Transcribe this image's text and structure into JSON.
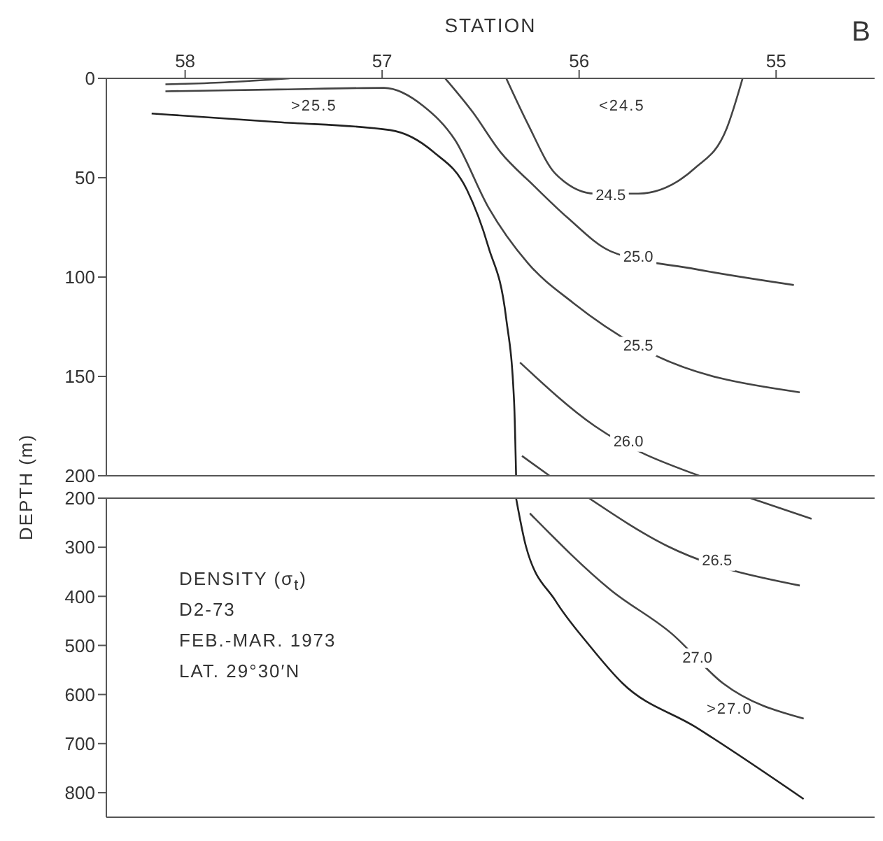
{
  "chart_data": [
    {
      "type": "line",
      "xlabel": "STATION",
      "ylabel": "DEPTH (m)",
      "xlim": [
        58.4,
        54.5
      ],
      "xticks": [
        58,
        57,
        56,
        55
      ],
      "ylim": [
        200,
        0
      ],
      "yticks": [
        0,
        50,
        100,
        150,
        200
      ],
      "grid": false,
      "legend": false,
      "marker": "none",
      "line_style": "solid",
      "annotations": [
        "B",
        ">25.5",
        "<24.5",
        {
          "text": "24.5",
          "x": 55.84,
          "y": 59
        },
        {
          "text": "25.0",
          "x": 55.7,
          "y": 90
        },
        {
          "text": "25.5",
          "x": 55.7,
          "y": 135
        },
        {
          "text": "26.0",
          "x": 55.75,
          "y": 183
        }
      ],
      "series": [
        {
          "color": "#444444",
          "x": [
            58.1,
            57.8,
            57.47
          ],
          "values": [
            3,
            2,
            0
          ]
        },
        {
          "color": "#444444",
          "x": [
            56.37,
            56.26,
            56.12,
            55.92,
            55.7,
            55.41,
            55.25,
            55.17
          ],
          "values": [
            0,
            23,
            48,
            58,
            58,
            45,
            25,
            0
          ]
        },
        {
          "color": "#444444",
          "x": [
            56.68,
            56.54,
            56.4,
            56.23,
            56.06,
            55.84,
            55.41,
            54.91
          ],
          "values": [
            0,
            17,
            37,
            54,
            70,
            87,
            96,
            104
          ]
        },
        {
          "color": "#444444",
          "x": [
            58.1,
            57.53,
            56.99,
            56.79,
            56.63,
            56.46,
            56.26,
            56.03,
            55.7,
            54.88
          ],
          "values": [
            6.5,
            5.6,
            4.8,
            14,
            31,
            65,
            93,
            113,
            135,
            158
          ]
        },
        {
          "color": "#222222",
          "x": [
            58.17,
            57.53,
            56.96,
            56.74,
            56.57,
            56.46,
            56.37,
            56.33,
            56.32
          ],
          "values": [
            17.7,
            22,
            26,
            37,
            56,
            85,
            121,
            163,
            200
          ]
        },
        {
          "color": "#444444",
          "x": [
            56.3,
            55.92,
            55.39
          ],
          "values": [
            143,
            175,
            200
          ]
        },
        {
          "color": "#444444",
          "x": [
            56.29,
            56.15
          ],
          "values": [
            190,
            200
          ]
        }
      ]
    },
    {
      "type": "line",
      "xlim": [
        58.4,
        54.5
      ],
      "ylim": [
        850,
        200
      ],
      "yticks": [
        200,
        300,
        400,
        500,
        600,
        700,
        800
      ],
      "tick_labels": "y",
      "grid": false,
      "legend": false,
      "marker": "none",
      "line_style": "solid",
      "annotations": [
        "DENSITY (σ$_{t}$)",
        "D2-73",
        "FEB.-MAR. 1973",
        "LAT. 29°30′N",
        ">27.0",
        {
          "text": "26.5",
          "x": 55.3,
          "y": 328
        },
        {
          "text": "27.0",
          "x": 55.4,
          "y": 526
        }
      ],
      "series": [
        {
          "color": "#222222",
          "x": [
            56.32,
            56.27,
            56.12,
            55.95,
            55.78,
            55.41,
            54.86
          ],
          "values": [
            200,
            298,
            409,
            499,
            577,
            666,
            813
          ]
        },
        {
          "color": "#444444",
          "x": [
            55.13,
            54.82
          ],
          "values": [
            200,
            242
          ]
        },
        {
          "color": "#444444",
          "x": [
            55.95,
            55.55,
            54.88
          ],
          "values": [
            200,
            298,
            378
          ]
        },
        {
          "color": "#444444",
          "x": [
            56.25,
            55.84,
            55.53,
            55.27,
            54.86
          ],
          "values": [
            231,
            387,
            476,
            577,
            649
          ]
        }
      ]
    }
  ]
}
